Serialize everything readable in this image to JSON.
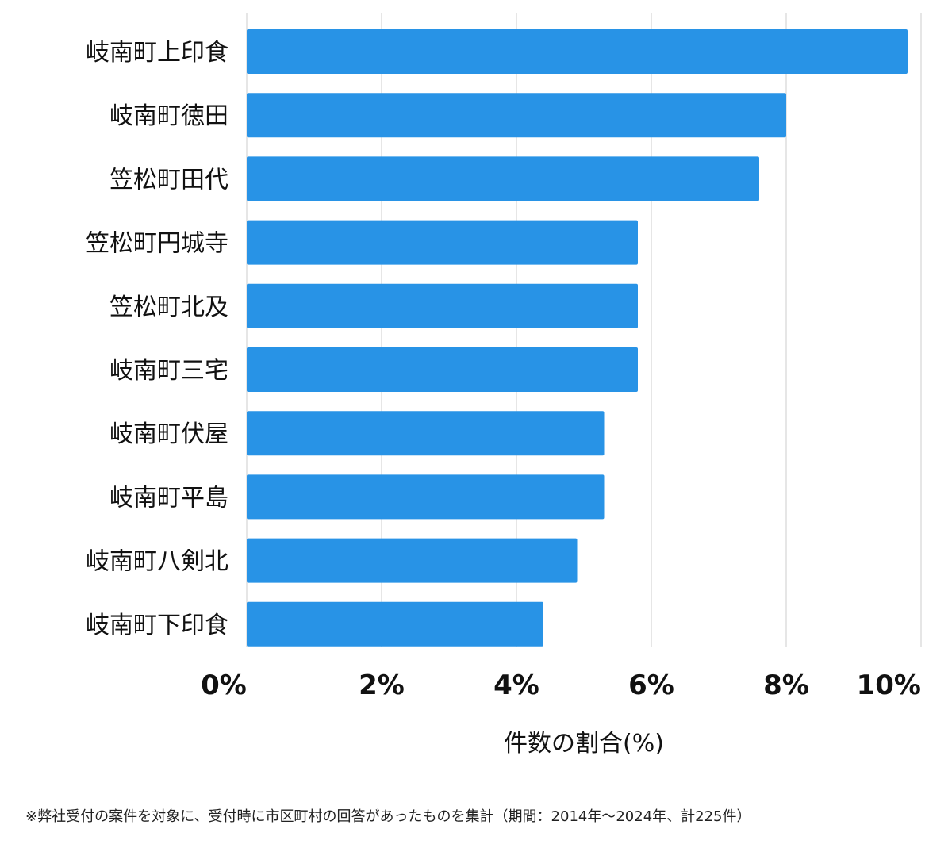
{
  "chart_data": {
    "type": "bar",
    "orientation": "horizontal",
    "categories": [
      "岐南町上印食",
      "岐南町徳田",
      "笠松町田代",
      "笠松町円城寺",
      "笠松町北及",
      "岐南町三宅",
      "岐南町伏屋",
      "岐南町平島",
      "岐南町八剣北",
      "岐南町下印食"
    ],
    "values": [
      9.8,
      8.0,
      7.6,
      5.8,
      5.8,
      5.8,
      5.3,
      5.3,
      4.9,
      4.4
    ],
    "xlim": [
      0,
      10
    ],
    "xticks": [
      0,
      2,
      4,
      6,
      8,
      10
    ],
    "tick_labels": [
      "0%",
      "2%",
      "4%",
      "6%",
      "8%",
      "10%"
    ],
    "xlabel": "件数の割合(%)",
    "ylabel": "",
    "grid": "vertical",
    "bar_color": "#2893e6",
    "grid_color": "#dddddd"
  },
  "footnote": "※弊社受付の案件を対象に、受付時に市区町村の回答があったものを集計（期間：2014年～2024年、計225件）"
}
